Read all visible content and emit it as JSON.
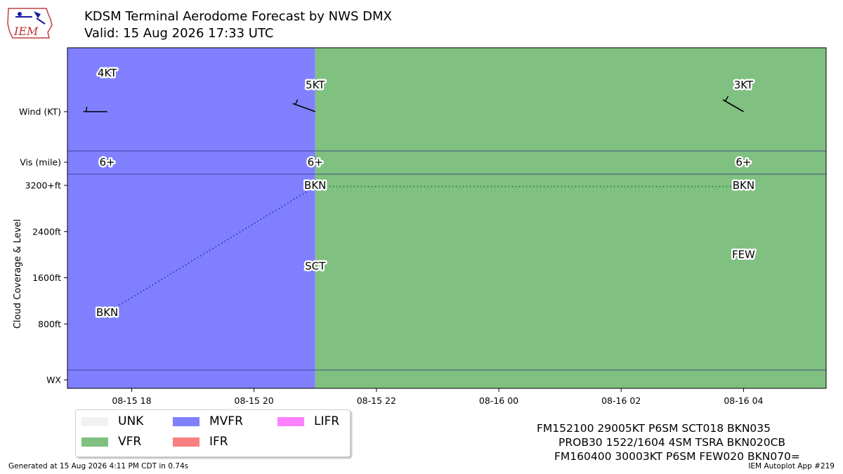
{
  "header": {
    "title": "KDSM Terminal Aerodome Forecast by NWS DMX",
    "valid": "Valid: 15 Aug 2026 17:33 UTC",
    "logo_text": "IEM"
  },
  "chart_data": {
    "type": "timeline",
    "x_axis": {
      "range_hours": [
        -1.05,
        11.35
      ],
      "ticks": [
        {
          "label": "08-15 18",
          "hour": 0
        },
        {
          "label": "08-15 20",
          "hour": 2
        },
        {
          "label": "08-15 22",
          "hour": 4
        },
        {
          "label": "08-16 00",
          "hour": 6
        },
        {
          "label": "08-16 02",
          "hour": 8
        },
        {
          "label": "08-16 04",
          "hour": 10
        }
      ]
    },
    "y_axis": {
      "label": "Cloud Coverage & Level",
      "ticks": [
        "Wind (KT)",
        "Vis (mile)",
        "3200+ft",
        "2400ft",
        "1600ft",
        "800ft",
        "WX"
      ]
    },
    "flight_categories": [
      {
        "category": "MVFR",
        "start_hour": -1.05,
        "end_hour": 3.0
      },
      {
        "category": "VFR",
        "start_hour": 3.0,
        "end_hour": 11.35
      }
    ],
    "wind": [
      {
        "hour": -0.4,
        "speed_kt": 4,
        "label": "4KT",
        "direction_deg": 270
      },
      {
        "hour": 3.0,
        "speed_kt": 5,
        "label": "5KT",
        "direction_deg": 290
      },
      {
        "hour": 10.0,
        "speed_kt": 3,
        "label": "3KT",
        "direction_deg": 300
      }
    ],
    "visibility": [
      {
        "hour": -0.4,
        "label": "6+"
      },
      {
        "hour": 3.0,
        "label": "6+"
      },
      {
        "hour": 10.0,
        "label": "6+"
      }
    ],
    "clouds": [
      {
        "hour": -0.4,
        "cover": "BKN",
        "level_ft": 1000,
        "series": "a"
      },
      {
        "hour": 3.0,
        "cover": "BKN",
        "level_ft": 3500,
        "series": "a"
      },
      {
        "hour": 3.0,
        "cover": "SCT",
        "level_ft": 1800,
        "series": "b"
      },
      {
        "hour": 10.0,
        "cover": "BKN",
        "level_ft": 3500,
        "series": "b"
      },
      {
        "hour": 10.0,
        "cover": "FEW",
        "level_ft": 2000,
        "series": "c"
      }
    ],
    "cloud_lines": [
      {
        "from": [
          -0.4,
          1000
        ],
        "to": [
          3.0,
          3500
        ],
        "color": "#1f2fd0"
      },
      {
        "from": [
          3.0,
          3500
        ],
        "to": [
          10.0,
          3500
        ],
        "color": "#1d7a3a"
      }
    ]
  },
  "legend": [
    {
      "label": "UNK",
      "color": "#f2f2f2"
    },
    {
      "label": "MVFR",
      "color": "#8080ff"
    },
    {
      "label": "LIFR",
      "color": "#ff80ff"
    },
    {
      "label": "VFR",
      "color": "#80c080"
    },
    {
      "label": "IFR",
      "color": "#f88080"
    }
  ],
  "taf_text": [
    "FM152100 29005KT P6SM SCT018 BKN035",
    "PROB30 1522/1604 4SM TSRA BKN020CB",
    "FM160400 30003KT P6SM FEW020 BKN070="
  ],
  "footer": {
    "generated": "Generated at 15 Aug 2026 4:11 PM CDT in 0.74s",
    "app": "IEM Autoplot App #219"
  }
}
